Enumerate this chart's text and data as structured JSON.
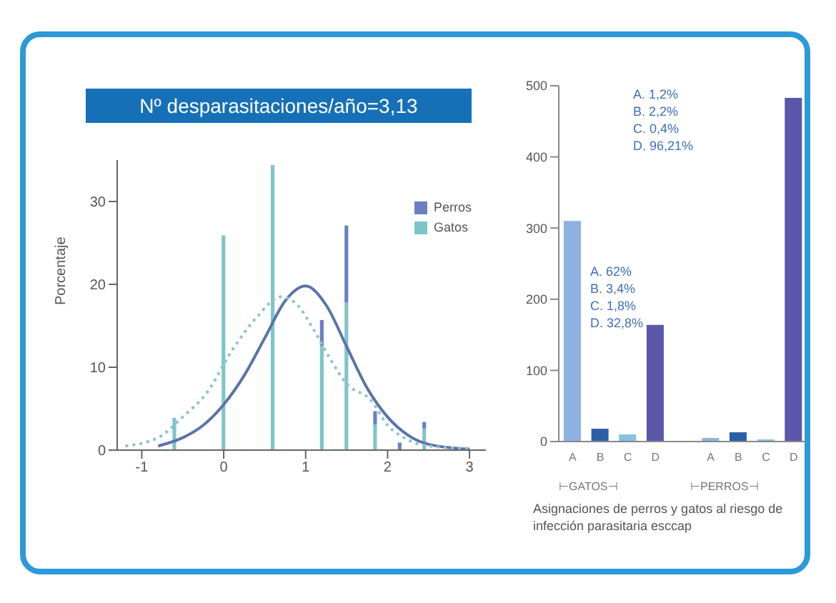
{
  "chart_data": [
    {
      "type": "bar",
      "title": "Nº desparasitaciones/año=3,13",
      "ylabel": "Porcentaje",
      "stacked": true,
      "x": [
        -0.6,
        0,
        0.6,
        1.2,
        1.5,
        1.85,
        2.15,
        2.45
      ],
      "xlim": [
        -1.3,
        3.2
      ],
      "xticks": [
        -1,
        0,
        1,
        2,
        3
      ],
      "ylim": [
        0,
        35
      ],
      "yticks": [
        0,
        10,
        20,
        30
      ],
      "legend": "top right",
      "grid": false,
      "series": [
        {
          "name": "Gatos",
          "color": "#7cc6c9",
          "values": [
            3.9,
            25.9,
            34.4,
            12.6,
            17.8,
            3.1,
            0,
            2.6
          ]
        },
        {
          "name": "Perros",
          "color": "#6b7fc2",
          "values": [
            0,
            0,
            0,
            3.1,
            9.3,
            1.6,
            0.9,
            0.8
          ]
        },
        {
          "type": "line",
          "color": "#5b74a8",
          "line_style": "solid",
          "x": [
            -0.8,
            -0.5,
            -0.25,
            0,
            0.25,
            0.5,
            0.75,
            1,
            1.25,
            1.5,
            1.75,
            2,
            2.25,
            2.5,
            3
          ],
          "values": [
            0.5,
            1.5,
            3,
            5.5,
            9,
            13.5,
            18,
            19.8,
            17.5,
            12.5,
            7.5,
            4,
            1.8,
            0.7,
            0.1
          ]
        },
        {
          "type": "line",
          "color": "#8fc3cf",
          "line_style": "dotted",
          "x": [
            -1.2,
            -0.8,
            -0.5,
            -0.2,
            0.1,
            0.4,
            0.7,
            0.9,
            1.1,
            1.3,
            1.5,
            1.8,
            2,
            2.2,
            2.5,
            3
          ],
          "values": [
            0.5,
            1.5,
            4,
            7,
            12,
            16,
            18.5,
            17.5,
            14.5,
            11,
            8,
            6,
            3,
            1.5,
            0.5,
            0.2
          ]
        }
      ]
    },
    {
      "type": "bar",
      "categories": [
        "A",
        "B",
        "C",
        "D",
        null,
        "A",
        "B",
        "C",
        "D"
      ],
      "values": [
        310,
        18,
        10,
        164,
        null,
        5,
        13,
        3,
        483
      ],
      "colors": [
        "#8fb1e2",
        "#2b5fa8",
        "#86c3e0",
        "#5a56a8",
        null,
        "#8fb1e2",
        "#2b5fa8",
        "#86c3e0",
        "#5a56a8"
      ],
      "ylim": [
        0,
        500
      ],
      "yticks": [
        0,
        100,
        200,
        300,
        400,
        500
      ],
      "grid": false,
      "xlabel": "Asignaciones de perros y gatos al riesgo de infección parasitaria esccap",
      "annotations": [
        "A. 62%\nB. 3,4%\nC. 1,8%\nD. 32,8%",
        "A. 1,2%\nB. 2,2%\nC. 0,4%\nD. 96,21%",
        "⊢GATOS⊣",
        "⊢PERROS⊣"
      ]
    }
  ]
}
